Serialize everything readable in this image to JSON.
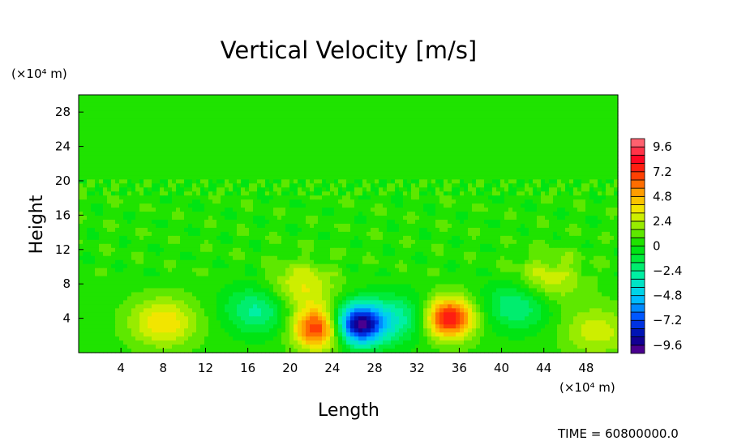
{
  "chart_data": {
    "type": "heatmap",
    "title": "Vertical Velocity [m/s]",
    "xlabel": "Length",
    "ylabel": "Height",
    "x_unit": "(×10⁴ m)",
    "y_unit": "(×10⁴ m)",
    "x_ticks": [
      4,
      8,
      12,
      16,
      20,
      24,
      28,
      32,
      36,
      40,
      44,
      48
    ],
    "y_ticks": [
      4,
      8,
      12,
      16,
      20,
      24,
      28
    ],
    "xlim": [
      0,
      51
    ],
    "ylim": [
      0,
      30
    ],
    "colorbar": {
      "labels": [
        "9.6",
        "7.2",
        "4.8",
        "2.4",
        "0",
        "−2.4",
        "−4.8",
        "−7.2",
        "−9.6"
      ],
      "label_values": [
        9.6,
        7.2,
        4.8,
        2.4,
        0,
        -2.4,
        -4.8,
        -7.2,
        -9.6
      ],
      "range": [
        -10.4,
        10.4
      ],
      "levels": 26
    },
    "features": [
      {
        "x": 26.5,
        "y": 3.3,
        "value": -10.0
      },
      {
        "x": 35.0,
        "y": 4.0,
        "value": 7.8
      },
      {
        "x": 22.6,
        "y": 2.8,
        "value": 7.0
      },
      {
        "x": 8.0,
        "y": 3.5,
        "value": 3.5
      },
      {
        "x": 21.0,
        "y": 7.5,
        "value": 3.0
      },
      {
        "x": 44.5,
        "y": 8.5,
        "value": 2.6
      },
      {
        "x": 49.0,
        "y": 2.5,
        "value": 2.5
      },
      {
        "x": 17.0,
        "y": 5.0,
        "value": -3.2
      },
      {
        "x": 30.5,
        "y": 4.0,
        "value": -3.0
      },
      {
        "x": 41.5,
        "y": 5.5,
        "value": -3.0
      }
    ]
  },
  "footer": {
    "time_label": "TIME = 60800000.0"
  }
}
